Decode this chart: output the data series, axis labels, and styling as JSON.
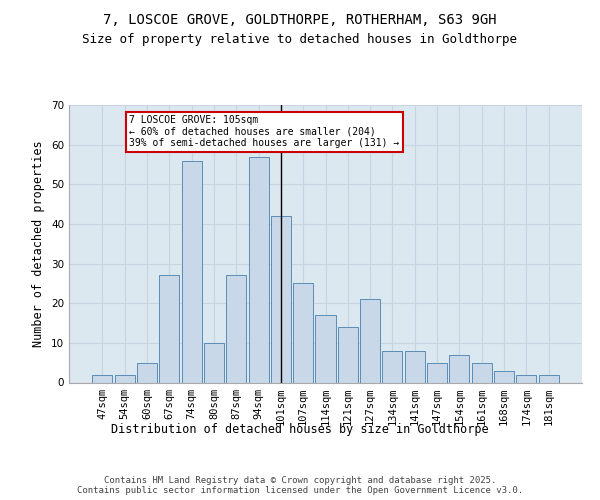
{
  "title1": "7, LOSCOE GROVE, GOLDTHORPE, ROTHERHAM, S63 9GH",
  "title2": "Size of property relative to detached houses in Goldthorpe",
  "xlabel": "Distribution of detached houses by size in Goldthorpe",
  "ylabel": "Number of detached properties",
  "categories": [
    "47sqm",
    "54sqm",
    "60sqm",
    "67sqm",
    "74sqm",
    "80sqm",
    "87sqm",
    "94sqm",
    "101sqm",
    "107sqm",
    "114sqm",
    "121sqm",
    "127sqm",
    "134sqm",
    "141sqm",
    "147sqm",
    "154sqm",
    "161sqm",
    "168sqm",
    "174sqm",
    "181sqm"
  ],
  "values": [
    2,
    2,
    5,
    27,
    56,
    10,
    27,
    57,
    42,
    25,
    17,
    14,
    21,
    8,
    8,
    5,
    7,
    5,
    3,
    2,
    2
  ],
  "bar_color": "#c8d8e8",
  "bar_edge_color": "#5b8db8",
  "highlight_bar_index": 8,
  "highlight_line_color": "#000000",
  "annotation_text": "7 LOSCOE GROVE: 105sqm\n← 60% of detached houses are smaller (204)\n39% of semi-detached houses are larger (131) →",
  "annotation_box_color": "#ffffff",
  "annotation_box_edge_color": "#cc0000",
  "ylim": [
    0,
    70
  ],
  "yticks": [
    0,
    10,
    20,
    30,
    40,
    50,
    60,
    70
  ],
  "grid_color": "#c8d4e0",
  "background_color": "#dce8f0",
  "footer_text": "Contains HM Land Registry data © Crown copyright and database right 2025.\nContains public sector information licensed under the Open Government Licence v3.0.",
  "title_fontsize": 10,
  "subtitle_fontsize": 9,
  "xlabel_fontsize": 8.5,
  "ylabel_fontsize": 8.5,
  "tick_fontsize": 7.5,
  "footer_fontsize": 6.5,
  "ann_fontsize": 7
}
